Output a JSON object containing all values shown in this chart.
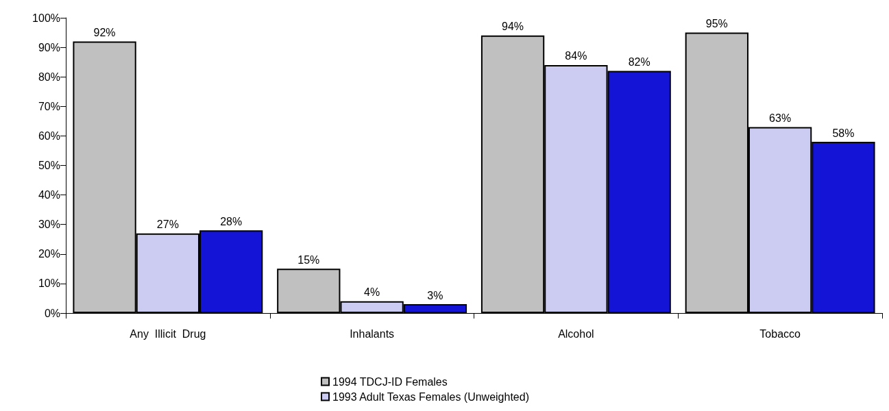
{
  "chart_data": {
    "type": "bar",
    "categories": [
      "Any  Illicit  Drug",
      "Inhalants",
      "Alcohol",
      "Tobacco"
    ],
    "series": [
      {
        "name": "1994 TDCJ-ID Females",
        "color": "#c0c0c0",
        "values": [
          92,
          15,
          94,
          95
        ],
        "value_labels": [
          "92%",
          "15%",
          "94%",
          "95%"
        ]
      },
      {
        "name": "1993 Adult Texas Females (Unweighted)",
        "color": "#ccccf2",
        "values": [
          27,
          4,
          84,
          63
        ],
        "value_labels": [
          "27%",
          "4%",
          "84%",
          "63%"
        ]
      },
      {
        "color": "#1414d6",
        "values": [
          28,
          3,
          82,
          58
        ],
        "value_labels": [
          "28%",
          "3%",
          "82%",
          "58%"
        ]
      }
    ],
    "ylim": [
      0,
      100
    ],
    "yticks": [
      {
        "value": 0,
        "label": "0%"
      },
      {
        "value": 10,
        "label": "10%"
      },
      {
        "value": 20,
        "label": "20%"
      },
      {
        "value": 30,
        "label": "30%"
      },
      {
        "value": 40,
        "label": "40%"
      },
      {
        "value": 50,
        "label": "50%"
      },
      {
        "value": 60,
        "label": "60%"
      },
      {
        "value": 70,
        "label": "70%"
      },
      {
        "value": 80,
        "label": "80%"
      },
      {
        "value": 90,
        "label": "90%"
      },
      {
        "value": 100,
        "label": "100%"
      }
    ],
    "grid": false,
    "legend": "bottom"
  }
}
